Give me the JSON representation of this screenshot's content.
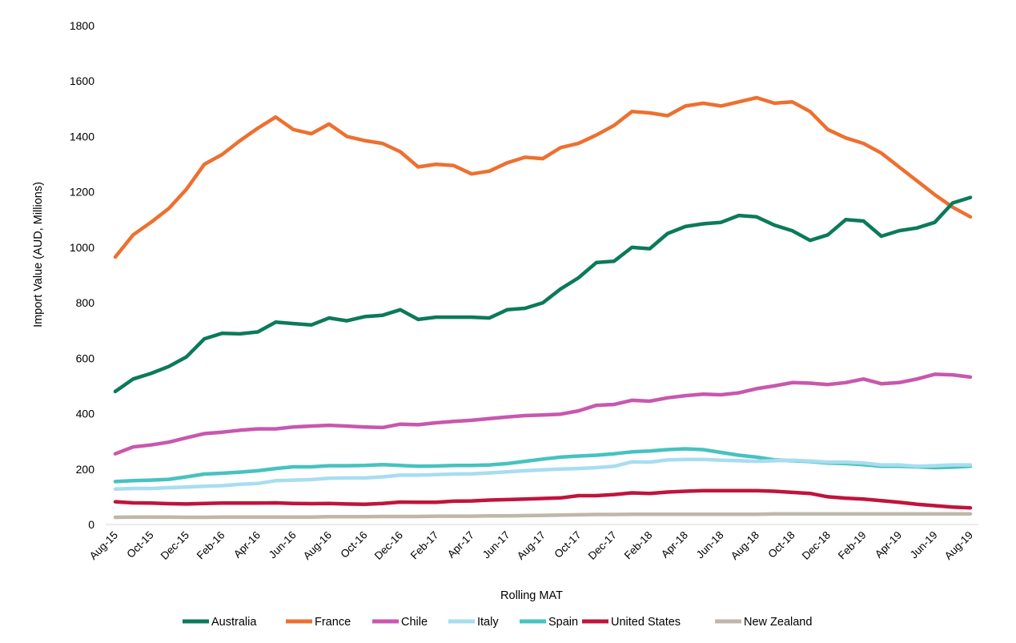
{
  "chart_data": {
    "type": "line",
    "title": "",
    "xlabel": "Rolling MAT",
    "ylabel": "Import Value (AUD, Millions)",
    "ylim": [
      0,
      1800
    ],
    "yticks": [
      "0",
      "200",
      "400",
      "600",
      "800",
      "1000",
      "1200",
      "1400",
      "1600",
      "1800"
    ],
    "grid": false,
    "legend_position": "bottom",
    "x_labels": [
      "Aug-15",
      "Oct-15",
      "Dec-15",
      "Feb-16",
      "Apr-16",
      "Jun-16",
      "Aug-16",
      "Oct-16",
      "Dec-16",
      "Feb-17",
      "Apr-17",
      "Jun-17",
      "Aug-17",
      "Oct-17",
      "Dec-17",
      "Feb-18",
      "Apr-18",
      "Jun-18",
      "Aug-18",
      "Oct-18",
      "Dec-18",
      "Feb-19",
      "Apr-19",
      "Jun-19",
      "Aug-19"
    ],
    "x": [
      "Aug-15",
      "Sep-15",
      "Oct-15",
      "Nov-15",
      "Dec-15",
      "Jan-16",
      "Feb-16",
      "Mar-16",
      "Apr-16",
      "May-16",
      "Jun-16",
      "Jul-16",
      "Aug-16",
      "Sep-16",
      "Oct-16",
      "Nov-16",
      "Dec-16",
      "Jan-17",
      "Feb-17",
      "Mar-17",
      "Apr-17",
      "May-17",
      "Jun-17",
      "Jul-17",
      "Aug-17",
      "Sep-17",
      "Oct-17",
      "Nov-17",
      "Dec-17",
      "Jan-18",
      "Feb-18",
      "Mar-18",
      "Apr-18",
      "May-18",
      "Jun-18",
      "Jul-18",
      "Aug-18",
      "Sep-18",
      "Oct-18",
      "Nov-18",
      "Dec-18",
      "Jan-19",
      "Feb-19",
      "Mar-19",
      "Apr-19",
      "May-19",
      "Jun-19",
      "Jul-19",
      "Aug-19"
    ],
    "series": [
      {
        "name": "Australia",
        "color": "#0b7a5a",
        "values": [
          480,
          525,
          545,
          570,
          605,
          670,
          690,
          688,
          695,
          730,
          725,
          720,
          745,
          735,
          750,
          755,
          775,
          740,
          748,
          748,
          748,
          745,
          775,
          780,
          800,
          850,
          890,
          945,
          950,
          1000,
          995,
          1050,
          1075,
          1085,
          1090,
          1115,
          1110,
          1080,
          1060,
          1025,
          1045,
          1100,
          1095,
          1040,
          1060,
          1070,
          1090,
          1160,
          1180
        ]
      },
      {
        "name": "France",
        "color": "#ed7030",
        "values": [
          965,
          1045,
          1090,
          1140,
          1210,
          1300,
          1335,
          1385,
          1430,
          1470,
          1425,
          1410,
          1445,
          1400,
          1385,
          1375,
          1345,
          1290,
          1300,
          1295,
          1265,
          1275,
          1305,
          1325,
          1320,
          1360,
          1375,
          1405,
          1440,
          1490,
          1485,
          1475,
          1510,
          1520,
          1510,
          1525,
          1540,
          1520,
          1525,
          1490,
          1425,
          1395,
          1375,
          1340,
          1290,
          1240,
          1190,
          1145,
          1110
        ]
      },
      {
        "name": "Chile",
        "color": "#c957ae",
        "values": [
          255,
          280,
          287,
          297,
          313,
          328,
          333,
          340,
          345,
          345,
          352,
          355,
          358,
          355,
          352,
          350,
          362,
          360,
          367,
          372,
          376,
          382,
          388,
          393,
          395,
          398,
          410,
          430,
          433,
          448,
          445,
          457,
          465,
          470,
          468,
          475,
          490,
          500,
          512,
          510,
          505,
          512,
          525,
          508,
          512,
          525,
          542,
          540,
          532
        ]
      },
      {
        "name": "Italy",
        "color": "#a8ddf0",
        "values": [
          128,
          130,
          130,
          133,
          135,
          138,
          140,
          145,
          148,
          158,
          160,
          162,
          167,
          168,
          168,
          172,
          178,
          178,
          180,
          182,
          183,
          186,
          190,
          194,
          197,
          200,
          202,
          205,
          210,
          226,
          225,
          233,
          235,
          235,
          232,
          230,
          228,
          230,
          232,
          229,
          225,
          225,
          222,
          215,
          215,
          210,
          212,
          215,
          215
        ]
      },
      {
        "name": "Spain",
        "color": "#47c2c0",
        "values": [
          155,
          158,
          160,
          163,
          172,
          182,
          185,
          189,
          194,
          202,
          208,
          208,
          212,
          212,
          213,
          216,
          213,
          210,
          211,
          213,
          213,
          215,
          220,
          228,
          236,
          243,
          247,
          250,
          255,
          262,
          265,
          270,
          273,
          270,
          260,
          250,
          243,
          233,
          230,
          227,
          222,
          220,
          216,
          210,
          210,
          208,
          205,
          207,
          210
        ]
      },
      {
        "name": "United States",
        "color": "#c0143c",
        "values": [
          82,
          78,
          77,
          75,
          74,
          76,
          77,
          77,
          77,
          78,
          76,
          75,
          76,
          74,
          73,
          76,
          81,
          80,
          80,
          84,
          85,
          88,
          90,
          92,
          94,
          96,
          104,
          104,
          108,
          114,
          112,
          117,
          120,
          122,
          122,
          122,
          122,
          120,
          116,
          112,
          100,
          95,
          92,
          86,
          80,
          73,
          68,
          63,
          60
        ]
      },
      {
        "name": "New Zealand",
        "color": "#bfb7a8",
        "values": [
          26,
          27,
          27,
          27,
          26,
          26,
          27,
          27,
          27,
          27,
          27,
          27,
          28,
          28,
          28,
          29,
          29,
          29,
          30,
          30,
          30,
          31,
          31,
          32,
          33,
          34,
          35,
          36,
          36,
          37,
          37,
          37,
          37,
          37,
          37,
          37,
          37,
          38,
          38,
          38,
          38,
          38,
          38,
          38,
          38,
          38,
          38,
          38,
          38
        ]
      }
    ]
  }
}
